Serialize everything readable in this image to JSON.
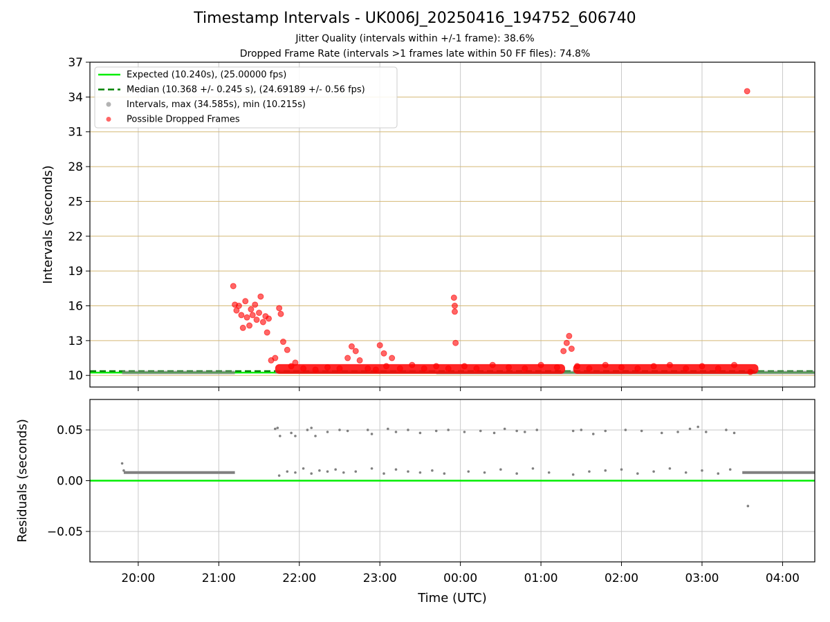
{
  "title": "Timestamp Intervals - UK006J_20250416_194752_606740",
  "subtitle_1": "Jitter Quality (intervals within +/-1 frame): 38.6%",
  "subtitle_2": "Dropped Frame Rate (intervals >1 frames late within 50 FF files): 74.8%",
  "colors": {
    "expected": "#00ee00",
    "median": "#008000",
    "interval": "#808080",
    "dropped": "#ff0000",
    "hgrid_top": "#d4b874",
    "grid": "#c8c8c8"
  },
  "chart_data": [
    {
      "type": "scatter",
      "ylabel": "Intervals (seconds)",
      "ylim": [
        9,
        37
      ],
      "yticks": [
        10,
        13,
        16,
        19,
        22,
        25,
        28,
        31,
        34,
        37
      ],
      "x_range_hours": [
        19.4,
        28.4
      ],
      "grid": true,
      "legend_position": "top-left",
      "legend": [
        {
          "key": "expected",
          "label": "Expected (10.240s), (25.00000 fps)",
          "style": "solid-line"
        },
        {
          "key": "median",
          "label": "Median (10.368 +/- 0.245 s), (24.69189 +/- 0.56 fps)",
          "style": "dashed-line"
        },
        {
          "key": "interval",
          "label": "Intervals, max (34.585s), min (10.215s)",
          "style": "dot"
        },
        {
          "key": "dropped",
          "label": "Possible Dropped Frames",
          "style": "dot"
        }
      ],
      "expected_value": 10.24,
      "median_value": 10.368,
      "series": [
        {
          "key": "intervals",
          "segments": [
            [
              19.8,
              21.2,
              10.25
            ],
            [
              21.7,
              23.7,
              10.3
            ],
            [
              23.7,
              28.4,
              10.25
            ]
          ]
        },
        {
          "key": "dropped_points",
          "points": [
            [
              21.18,
              17.7
            ],
            [
              21.2,
              16.1
            ],
            [
              21.22,
              15.6
            ],
            [
              21.25,
              16.0
            ],
            [
              21.28,
              15.2
            ],
            [
              21.3,
              14.1
            ],
            [
              21.33,
              16.4
            ],
            [
              21.35,
              15.0
            ],
            [
              21.38,
              14.3
            ],
            [
              21.4,
              15.7
            ],
            [
              21.42,
              15.2
            ],
            [
              21.45,
              16.1
            ],
            [
              21.47,
              14.8
            ],
            [
              21.5,
              15.4
            ],
            [
              21.52,
              16.8
            ],
            [
              21.55,
              14.6
            ],
            [
              21.58,
              15.1
            ],
            [
              21.6,
              13.7
            ],
            [
              21.62,
              14.9
            ],
            [
              21.65,
              11.3
            ],
            [
              21.7,
              11.5
            ],
            [
              21.75,
              15.8
            ],
            [
              21.77,
              15.3
            ],
            [
              21.8,
              12.9
            ],
            [
              21.85,
              12.2
            ],
            [
              21.9,
              10.8
            ],
            [
              21.95,
              11.1
            ],
            [
              22.05,
              10.6
            ],
            [
              22.2,
              10.5
            ],
            [
              22.35,
              10.7
            ],
            [
              22.5,
              10.6
            ],
            [
              22.6,
              11.5
            ],
            [
              22.65,
              12.5
            ],
            [
              22.7,
              12.1
            ],
            [
              22.75,
              11.3
            ],
            [
              22.85,
              10.6
            ],
            [
              22.95,
              10.5
            ],
            [
              23.0,
              12.6
            ],
            [
              23.05,
              11.9
            ],
            [
              23.08,
              10.8
            ],
            [
              23.15,
              11.5
            ],
            [
              23.25,
              10.6
            ],
            [
              23.4,
              10.9
            ],
            [
              23.55,
              10.6
            ],
            [
              23.7,
              10.8
            ],
            [
              23.85,
              10.6
            ],
            [
              23.92,
              16.7
            ],
            [
              23.93,
              16.0
            ],
            [
              23.93,
              15.5
            ],
            [
              23.94,
              12.8
            ],
            [
              24.05,
              10.8
            ],
            [
              24.2,
              10.6
            ],
            [
              24.4,
              10.9
            ],
            [
              24.6,
              10.7
            ],
            [
              24.8,
              10.6
            ],
            [
              25.0,
              10.9
            ],
            [
              25.2,
              10.7
            ],
            [
              25.28,
              12.1
            ],
            [
              25.32,
              12.8
            ],
            [
              25.35,
              13.4
            ],
            [
              25.38,
              12.3
            ],
            [
              25.45,
              10.8
            ],
            [
              25.6,
              10.6
            ],
            [
              25.8,
              10.9
            ],
            [
              26.0,
              10.7
            ],
            [
              26.2,
              10.6
            ],
            [
              26.4,
              10.8
            ],
            [
              26.6,
              10.9
            ],
            [
              26.8,
              10.6
            ],
            [
              27.0,
              10.8
            ],
            [
              27.2,
              10.6
            ],
            [
              27.4,
              10.9
            ],
            [
              27.56,
              34.5
            ],
            [
              27.6,
              10.3
            ]
          ]
        },
        {
          "key": "dropped_band",
          "segments": [
            [
              21.7,
              25.3,
              10.5
            ],
            [
              25.4,
              27.7,
              10.5
            ]
          ]
        }
      ]
    },
    {
      "type": "scatter",
      "ylabel": "Residuals (seconds)",
      "xlabel": "Time (UTC)",
      "ylim": [
        -0.08,
        0.08
      ],
      "yticks": [
        -0.05,
        0.0,
        0.05
      ],
      "ytick_labels": [
        "−0.05",
        "0.00",
        "0.05"
      ],
      "x_range_hours": [
        19.4,
        28.4
      ],
      "xticks": [
        20,
        21,
        22,
        23,
        24,
        25,
        26,
        27,
        28
      ],
      "xtick_labels": [
        "20:00",
        "21:00",
        "22:00",
        "23:00",
        "00:00",
        "01:00",
        "02:00",
        "03:00",
        "04:00"
      ],
      "grid": true,
      "zero_line_value": 0.0,
      "series": [
        {
          "key": "residual_low_band",
          "segments": [
            [
              19.82,
              21.2,
              0.008
            ],
            [
              27.5,
              28.4,
              0.008
            ]
          ]
        },
        {
          "key": "residual_points",
          "points": [
            [
              19.8,
              0.017
            ],
            [
              19.82,
              0.01
            ],
            [
              21.7,
              0.051
            ],
            [
              21.73,
              0.052
            ],
            [
              21.76,
              0.044
            ],
            [
              21.9,
              0.047
            ],
            [
              21.95,
              0.044
            ],
            [
              22.1,
              0.05
            ],
            [
              22.15,
              0.052
            ],
            [
              22.2,
              0.044
            ],
            [
              22.35,
              0.048
            ],
            [
              22.5,
              0.05
            ],
            [
              22.6,
              0.049
            ],
            [
              22.85,
              0.05
            ],
            [
              22.9,
              0.046
            ],
            [
              23.1,
              0.051
            ],
            [
              23.2,
              0.048
            ],
            [
              23.35,
              0.05
            ],
            [
              23.5,
              0.047
            ],
            [
              23.7,
              0.049
            ],
            [
              23.85,
              0.05
            ],
            [
              24.05,
              0.048
            ],
            [
              24.25,
              0.049
            ],
            [
              24.42,
              0.047
            ],
            [
              24.55,
              0.051
            ],
            [
              24.7,
              0.049
            ],
            [
              24.8,
              0.048
            ],
            [
              24.95,
              0.05
            ],
            [
              25.4,
              0.049
            ],
            [
              25.5,
              0.05
            ],
            [
              25.65,
              0.046
            ],
            [
              25.8,
              0.049
            ],
            [
              26.05,
              0.05
            ],
            [
              26.25,
              0.049
            ],
            [
              26.5,
              0.047
            ],
            [
              26.7,
              0.048
            ],
            [
              26.85,
              0.051
            ],
            [
              26.95,
              0.053
            ],
            [
              27.05,
              0.048
            ],
            [
              27.3,
              0.05
            ],
            [
              27.4,
              0.047
            ],
            [
              27.57,
              -0.025
            ],
            [
              21.75,
              0.005
            ],
            [
              21.85,
              0.009
            ],
            [
              21.95,
              0.008
            ],
            [
              22.05,
              0.012
            ],
            [
              22.15,
              0.007
            ],
            [
              22.25,
              0.01
            ],
            [
              22.35,
              0.009
            ],
            [
              22.45,
              0.011
            ],
            [
              22.55,
              0.008
            ],
            [
              22.7,
              0.009
            ],
            [
              22.9,
              0.012
            ],
            [
              23.05,
              0.007
            ],
            [
              23.2,
              0.011
            ],
            [
              23.35,
              0.009
            ],
            [
              23.5,
              0.008
            ],
            [
              23.65,
              0.01
            ],
            [
              23.8,
              0.007
            ],
            [
              24.1,
              0.009
            ],
            [
              24.3,
              0.008
            ],
            [
              24.5,
              0.011
            ],
            [
              24.7,
              0.007
            ],
            [
              24.9,
              0.012
            ],
            [
              25.1,
              0.008
            ],
            [
              25.4,
              0.006
            ],
            [
              25.6,
              0.009
            ],
            [
              25.8,
              0.01
            ],
            [
              26.0,
              0.011
            ],
            [
              26.2,
              0.007
            ],
            [
              26.4,
              0.009
            ],
            [
              26.6,
              0.012
            ],
            [
              26.8,
              0.008
            ],
            [
              27.0,
              0.01
            ],
            [
              27.2,
              0.007
            ],
            [
              27.35,
              0.011
            ]
          ]
        }
      ]
    }
  ]
}
